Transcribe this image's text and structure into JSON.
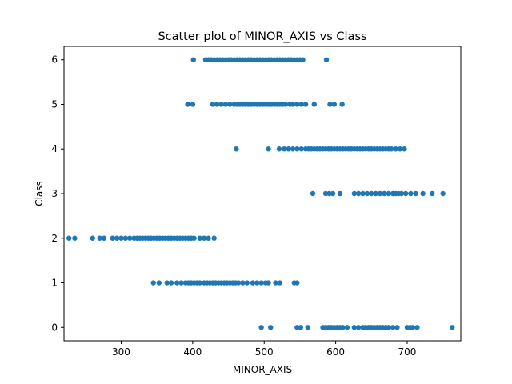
{
  "chart_data": {
    "type": "scatter",
    "title": "Scatter plot of MINOR_AXIS vs Class",
    "xlabel": "MINOR_AXIS",
    "ylabel": "Class",
    "xlim": [
      220,
      775
    ],
    "ylim": [
      -0.3,
      6.3
    ],
    "x_ticks": [
      300,
      400,
      500,
      600,
      700
    ],
    "y_ticks": [
      0,
      1,
      2,
      3,
      4,
      5,
      6
    ],
    "grid": false,
    "legend": "none",
    "marker_color": "#1f77b4",
    "series": [
      {
        "values": [
          {
            "class": 6,
            "x": [
              401,
              418,
              422,
              426,
              430,
              434,
              438,
              442,
              446,
              450,
              454,
              458,
              462,
              466,
              470,
              474,
              478,
              482,
              486,
              490,
              494,
              498,
              502,
              506,
              510,
              514,
              518,
              522,
              526,
              530,
              534,
              538,
              542,
              546,
              550,
              554,
              587
            ]
          },
          {
            "class": 5,
            "x": [
              393,
              400,
              428,
              434,
              440,
              446,
              452,
              458,
              462,
              466,
              470,
              474,
              478,
              482,
              486,
              490,
              494,
              498,
              502,
              506,
              510,
              514,
              518,
              522,
              526,
              530,
              536,
              540,
              546,
              552,
              558,
              570,
              592,
              598,
              609
            ]
          },
          {
            "class": 4,
            "x": [
              461,
              506,
              521,
              528,
              534,
              540,
              546,
              552,
              558,
              562,
              566,
              570,
              574,
              578,
              582,
              586,
              590,
              594,
              598,
              602,
              606,
              610,
              614,
              618,
              622,
              626,
              630,
              634,
              638,
              642,
              646,
              650,
              654,
              658,
              662,
              666,
              670,
              674,
              678,
              684,
              690,
              696
            ]
          },
          {
            "class": 3,
            "x": [
              568,
              586,
              591,
              596,
              606,
              626,
              632,
              638,
              644,
              650,
              656,
              662,
              668,
              674,
              680,
              684,
              688,
              692,
              698,
              705,
              712,
              722,
              735,
              750
            ]
          },
          {
            "class": 2,
            "x": [
              227,
              235,
              260,
              270,
              276,
              288,
              294,
              300,
              306,
              312,
              318,
              322,
              326,
              330,
              334,
              338,
              342,
              346,
              350,
              354,
              358,
              362,
              366,
              370,
              374,
              378,
              382,
              386,
              390,
              394,
              398,
              402,
              410,
              416,
              422,
              430
            ]
          },
          {
            "class": 1,
            "x": [
              345,
              353,
              364,
              370,
              378,
              384,
              390,
              394,
              398,
              402,
              406,
              410,
              416,
              420,
              424,
              428,
              432,
              436,
              440,
              444,
              448,
              452,
              456,
              460,
              464,
              470,
              476,
              484,
              490,
              496,
              502,
              506,
              516,
              522,
              542,
              546
            ]
          },
          {
            "class": 0,
            "x": [
              496,
              509,
              546,
              551,
              561,
              582,
              586,
              590,
              594,
              598,
              602,
              606,
              610,
              616,
              626,
              632,
              638,
              642,
              646,
              650,
              654,
              658,
              662,
              666,
              670,
              674,
              680,
              686,
              700,
              704,
              708,
              714,
              763
            ]
          }
        ]
      }
    ]
  }
}
